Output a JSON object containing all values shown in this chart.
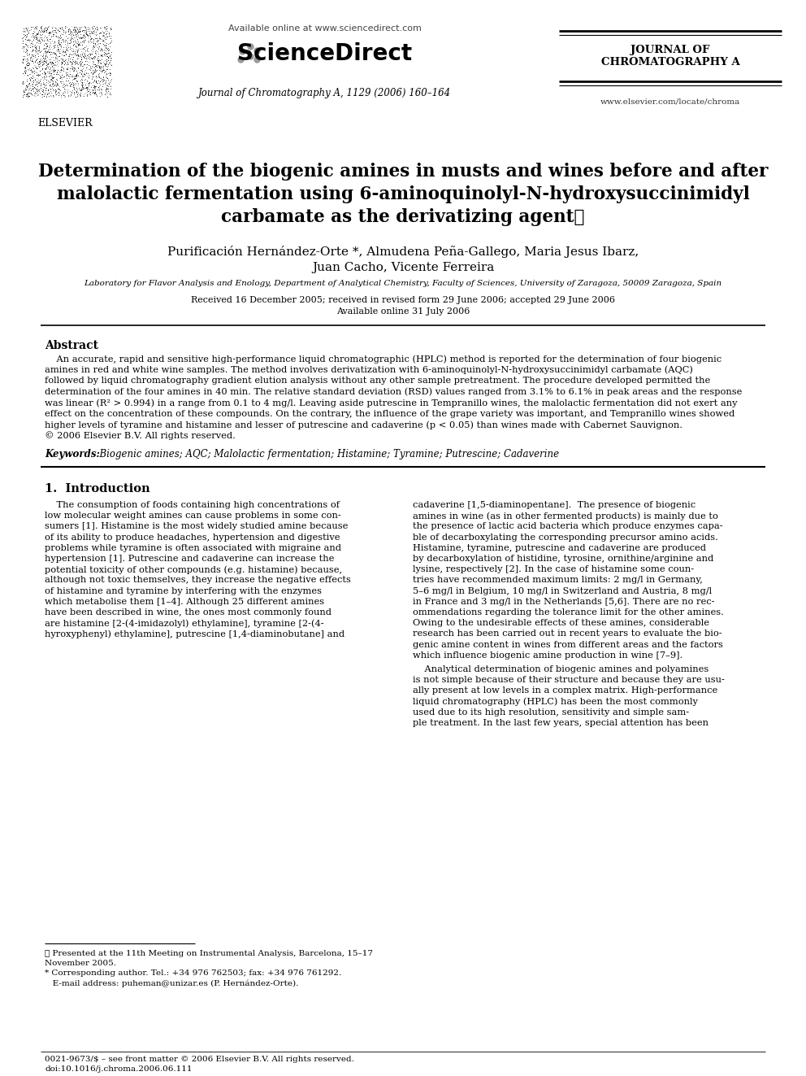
{
  "bg_color": "#ffffff",
  "header": {
    "available_online": "Available online at www.sciencedirect.com",
    "sciencedirect_text": "ScienceDirect",
    "journal_ref": "Journal of Chromatography A, 1129 (2006) 160–164",
    "journal_name_line1": "JOURNAL OF",
    "journal_name_line2": "CHROMATOGRAPHY A",
    "website": "www.elsevier.com/locate/chroma"
  },
  "title_line1": "Determination of the biogenic amines in musts and wines before and after",
  "title_line2": "malolactic fermentation using 6-aminoquinolyl-N-hydroxysuccinimidyl",
  "title_line3": "carbamate as the derivatizing agent⋆",
  "authors_line1": "Purificación Hernández-Orte *, Almudena Peña-Gallego, Maria Jesus Ibarz,",
  "authors_line2": "Juan Cacho, Vicente Ferreira",
  "affiliation": "Laboratory for Flavor Analysis and Enology, Department of Analytical Chemistry, Faculty of Sciences, University of Zaragoza, 50009 Zaragoza, Spain",
  "received": "Received 16 December 2005; received in revised form 29 June 2006; accepted 29 June 2006",
  "available": "Available online 31 July 2006",
  "abstract_title": "Abstract",
  "abstract_body_lines": [
    "    An accurate, rapid and sensitive high-performance liquid chromatographic (HPLC) method is reported for the determination of four biogenic",
    "amines in red and white wine samples. The method involves derivatization with 6-aminoquinolyl-N-hydroxysuccinimidyl carbamate (AQC)",
    "followed by liquid chromatography gradient elution analysis without any other sample pretreatment. The procedure developed permitted the",
    "determination of the four amines in 40 min. The relative standard deviation (RSD) values ranged from 3.1% to 6.1% in peak areas and the response",
    "was linear (R² > 0.994) in a range from 0.1 to 4 mg/l. Leaving aside putrescine in Tempranillo wines, the malolactic fermentation did not exert any",
    "effect on the concentration of these compounds. On the contrary, the influence of the grape variety was important, and Tempranillo wines showed",
    "higher levels of tyramine and histamine and lesser of putrescine and cadaverine (p < 0.05) than wines made with Cabernet Sauvignon.",
    "© 2006 Elsevier B.V. All rights reserved."
  ],
  "keywords_label": "Keywords:",
  "keywords": "  Biogenic amines; AQC; Malolactic fermentation; Histamine; Tyramine; Putrescine; Cadaverine",
  "section1_title": "1.  Introduction",
  "col1_lines": [
    "    The consumption of foods containing high concentrations of",
    "low molecular weight amines can cause problems in some con-",
    "sumers [1]. Histamine is the most widely studied amine because",
    "of its ability to produce headaches, hypertension and digestive",
    "problems while tyramine is often associated with migraine and",
    "hypertension [1]. Putrescine and cadaverine can increase the",
    "potential toxicity of other compounds (e.g. histamine) because,",
    "although not toxic themselves, they increase the negative effects",
    "of histamine and tyramine by interfering with the enzymes",
    "which metabolise them [1–4]. Although 25 different amines",
    "have been described in wine, the ones most commonly found",
    "are histamine [2-(4-imidazolyl) ethylamine], tyramine [2-(4-",
    "hyroxyphenyl) ethylamine], putrescine [1,4-diaminobutane] and"
  ],
  "col2_lines": [
    "cadaverine [1,5-diaminopentane].  The presence of biogenic",
    "amines in wine (as in other fermented products) is mainly due to",
    "the presence of lactic acid bacteria which produce enzymes capa-",
    "ble of decarboxylating the corresponding precursor amino acids.",
    "Histamine, tyramine, putrescine and cadaverine are produced",
    "by decarboxylation of histidine, tyrosine, ornithine/arginine and",
    "lysine, respectively [2]. In the case of histamine some coun-",
    "tries have recommended maximum limits: 2 mg/l in Germany,",
    "5–6 mg/l in Belgium, 10 mg/l in Switzerland and Austria, 8 mg/l",
    "in France and 3 mg/l in the Netherlands [5,6]. There are no rec-",
    "ommendations regarding the tolerance limit for the other amines.",
    "Owing to the undesirable effects of these amines, considerable",
    "research has been carried out in recent years to evaluate the bio-",
    "genic amine content in wines from different areas and the factors",
    "which influence biogenic amine production in wine [7–9]."
  ],
  "col2b_lines": [
    "    Analytical determination of biogenic amines and polyamines",
    "is not simple because of their structure and because they are usu-",
    "ally present at low levels in a complex matrix. High-performance",
    "liquid chromatography (HPLC) has been the most commonly",
    "used due to its high resolution, sensitivity and simple sam-",
    "ple treatment. In the last few years, special attention has been"
  ],
  "footnote1_lines": [
    "⋆ Presented at the 11th Meeting on Instrumental Analysis, Barcelona, 15–17",
    "November 2005."
  ],
  "footnote2_lines": [
    "* Corresponding author. Tel.: +34 976 762503; fax: +34 976 761292.",
    "   E-mail address: puheman@unizar.es (P. Hernández-Orte)."
  ],
  "footer_lines": [
    "0021-9673/$ – see front matter © 2006 Elsevier B.V. All rights reserved.",
    "doi:10.1016/j.chroma.2006.06.111"
  ]
}
